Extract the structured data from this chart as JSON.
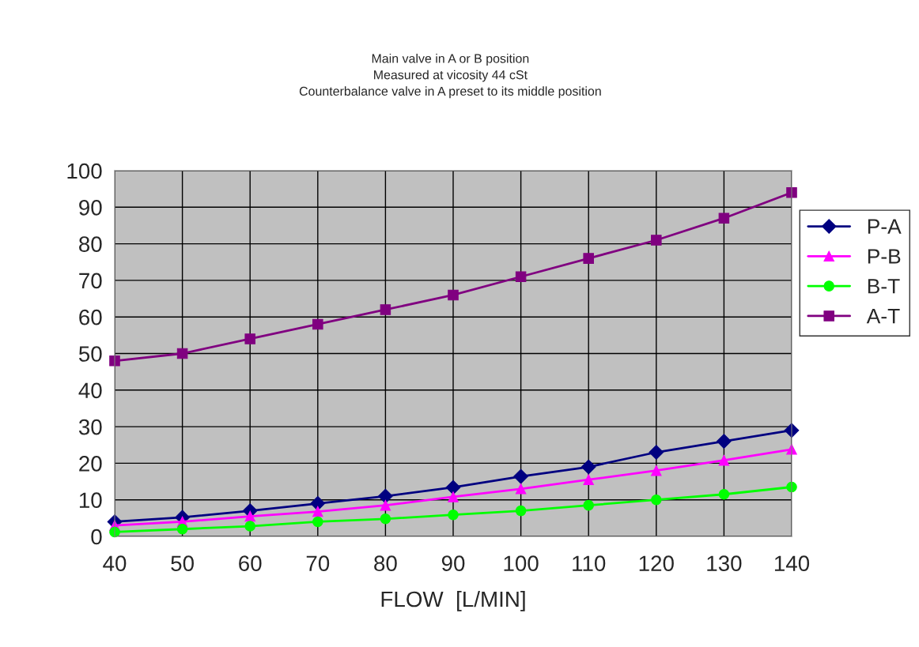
{
  "chart_data": {
    "type": "line",
    "subtitle": "Main valve in A or B position\nMeasured at vicosity 44 cSt\nCounterbalance valve in A preset to its middle position",
    "xlabel": "FLOW  [L/MIN]",
    "x": [
      40,
      50,
      60,
      70,
      80,
      90,
      100,
      110,
      120,
      130,
      140
    ],
    "series": [
      {
        "name": "P-A",
        "color": "#000080",
        "marker": "diamond",
        "values": [
          4,
          5.2,
          7,
          9,
          11,
          13.4,
          16.4,
          19,
          23,
          26,
          29
        ]
      },
      {
        "name": "P-B",
        "color": "#ff00ff",
        "marker": "triangle",
        "values": [
          3,
          4,
          5.5,
          6.8,
          8.5,
          10.8,
          13,
          15.5,
          18,
          20.8,
          23.8
        ]
      },
      {
        "name": "B-T",
        "color": "#00ff00",
        "marker": "circle",
        "values": [
          1.2,
          2,
          2.8,
          4,
          4.8,
          5.9,
          7,
          8.5,
          10,
          11.5,
          13.5
        ]
      },
      {
        "name": "A-T",
        "color": "#800080",
        "marker": "square",
        "values": [
          48,
          50,
          54,
          58,
          62,
          66,
          71,
          76,
          81,
          87,
          94
        ]
      }
    ],
    "xlim": [
      40,
      140
    ],
    "xticks": [
      40,
      50,
      60,
      70,
      80,
      90,
      100,
      110,
      120,
      130,
      140
    ],
    "ylim": [
      0,
      100
    ],
    "yticks": [
      0,
      10,
      20,
      30,
      40,
      50,
      60,
      70,
      80,
      90,
      100
    ],
    "grid": true,
    "legend": "right"
  }
}
